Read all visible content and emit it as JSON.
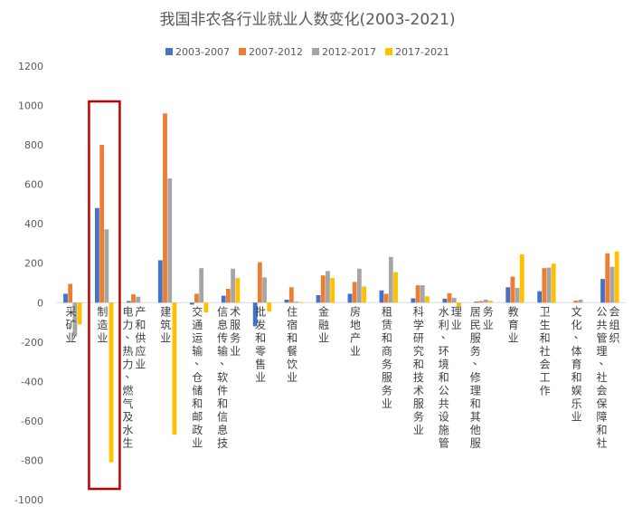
{
  "chart_data": {
    "type": "bar",
    "title": "我国非农各行业就业人数变化(2003-2021)",
    "xlabel": "",
    "ylabel": "",
    "ylim": [
      -1000,
      1200
    ],
    "yticks": [
      1200,
      1000,
      800,
      600,
      400,
      200,
      0,
      -200,
      -400,
      -600,
      -800,
      -1000
    ],
    "grid": false,
    "legend_position": "top",
    "colors": [
      "#4472C4",
      "#ED7D31",
      "#A5A5A5",
      "#FFC000"
    ],
    "highlight_color": "#C00000",
    "highlight_category_index": 1,
    "categories": [
      "采矿业",
      "制造业",
      "电力、热力、燃气及水生产和供应业",
      "建筑业",
      "交通运输、仓储和邮政业",
      "信息传输、软件和信息技术服务业",
      "批发和零售业",
      "住宿和餐饮业",
      "金融业",
      "房地产业",
      "租赁和商务服务业",
      "科学研究和技术服务业",
      "水利、环境和公共设施管理业",
      "居民服务、修理和其他服务业",
      "教育业",
      "卫生和社会工作",
      "文化、体育和娱乐业",
      "公共管理、社会保障和社会组织"
    ],
    "series": [
      {
        "name": "2003-2007",
        "values": [
          45,
          480,
          8,
          215,
          -10,
          35,
          -120,
          15,
          38,
          45,
          62,
          22,
          20,
          5,
          78,
          58,
          0,
          120
        ]
      },
      {
        "name": "2007-2012",
        "values": [
          95,
          800,
          42,
          960,
          45,
          70,
          205,
          78,
          138,
          105,
          45,
          88,
          48,
          8,
          132,
          175,
          10,
          250
        ]
      },
      {
        "name": "2012-2017",
        "values": [
          -170,
          372,
          30,
          630,
          175,
          172,
          128,
          5,
          160,
          172,
          232,
          88,
          25,
          15,
          75,
          178,
          15,
          182
        ]
      },
      {
        "name": "2017-2021",
        "values": [
          -110,
          -810,
          0,
          -670,
          -50,
          125,
          -45,
          3,
          125,
          82,
          155,
          32,
          -20,
          10,
          245,
          198,
          0,
          260
        ]
      }
    ]
  }
}
